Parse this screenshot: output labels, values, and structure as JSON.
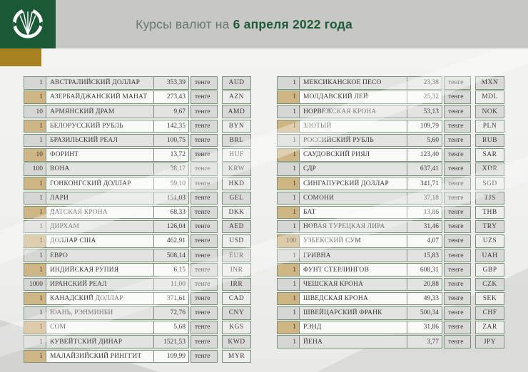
{
  "header": {
    "title_prefix": "Курсы валют на",
    "title_date": "6 апреля 2022 года",
    "logo": "national-bank-wheat-emblem"
  },
  "colors": {
    "brand_green": "#1a5836",
    "accent_gold": "#a6811f",
    "header_gray": "#c7c7c5",
    "table_border_green": "#7a937b",
    "quantity_tan": "#cfb584"
  },
  "tables": {
    "left": {
      "rows": [
        {
          "qty": "1",
          "name": "АВСТРАЛИЙСКИЙ ДОЛЛАР",
          "value": "353,39",
          "unit": "тенге",
          "code": "AUD"
        },
        {
          "qty": "1",
          "name": "АЗЕРБАЙДЖАНСКИЙ МАНАТ",
          "value": "273,43",
          "unit": "тенге",
          "code": "AZN"
        },
        {
          "qty": "10",
          "name": "АРМЯНСКИЙ ДРАМ",
          "value": "9,67",
          "unit": "тенге",
          "code": "AMD"
        },
        {
          "qty": "1",
          "name": "БЕЛОРУССКИЙ РУБЛЬ",
          "value": "142,35",
          "unit": "тенге",
          "code": "BYN"
        },
        {
          "qty": "1",
          "name": "БРАЗИЛЬСКИЙ РЕАЛ",
          "value": "100,75",
          "unit": "тенге",
          "code": "BRL"
        },
        {
          "qty": "10",
          "name": "ФОРИНТ",
          "value": "13,72",
          "unit": "тенге",
          "code": "HUF"
        },
        {
          "qty": "100",
          "name": "ВОНА",
          "value": "38,17",
          "unit": "тенге",
          "code": "KRW"
        },
        {
          "qty": "1",
          "name": "ГОНКОНГСКИЙ ДОЛЛАР",
          "value": "59,10",
          "unit": "тенге",
          "code": "HKD"
        },
        {
          "qty": "1",
          "name": "ЛАРИ",
          "value": "151,03",
          "unit": "тенге",
          "code": "GEL"
        },
        {
          "qty": "1",
          "name": "ДАТСКАЯ КРОНА",
          "value": "68,33",
          "unit": "тенге",
          "code": "DKK"
        },
        {
          "qty": "1",
          "name": "ДИРХАМ",
          "value": "126,04",
          "unit": "тенге",
          "code": "AED"
        },
        {
          "qty": "1",
          "name": "ДОЛЛАР США",
          "value": "462,91",
          "unit": "тенге",
          "code": "USD"
        },
        {
          "qty": "1",
          "name": "ЕВРО",
          "value": "508,14",
          "unit": "тенге",
          "code": "EUR"
        },
        {
          "qty": "1",
          "name": "ИНДИЙСКАЯ РУПИЯ",
          "value": "6,15",
          "unit": "тенге",
          "code": "INR"
        },
        {
          "qty": "1000",
          "name": "ИРАНСКИЙ РЕАЛ",
          "value": "11,00",
          "unit": "тенге",
          "code": "IRR"
        },
        {
          "qty": "1",
          "name": "КАНАДСКИЙ ДОЛЛАР",
          "value": "371,61",
          "unit": "тенге",
          "code": "CAD"
        },
        {
          "qty": "1",
          "name": "ЮАНЬ, РЭНМИНБИ",
          "value": "72,76",
          "unit": "тенге",
          "code": "CNY"
        },
        {
          "qty": "1",
          "name": "СОМ",
          "value": "5,68",
          "unit": "тенге",
          "code": "KGS"
        },
        {
          "qty": "1",
          "name": "КУВЕЙТСКИЙ ДИНАР",
          "value": "1521,53",
          "unit": "тенге",
          "code": "KWD"
        },
        {
          "qty": "1",
          "name": "МАЛАЙЗИЙСКИЙ РИНГГИТ",
          "value": "109,99",
          "unit": "тенге",
          "code": "MYR"
        }
      ]
    },
    "right": {
      "rows": [
        {
          "qty": "1",
          "name": "МЕКСИКАНСКОЕ ПЕСО",
          "value": "23,38",
          "unit": "тенге",
          "code": "MXN"
        },
        {
          "qty": "1",
          "name": "МОЛДАВСКИЙ ЛЕЙ",
          "value": "25,32",
          "unit": "тенге",
          "code": "MDL"
        },
        {
          "qty": "1",
          "name": "НОРВЕЖСКАЯ КРОНА",
          "value": "53,13",
          "unit": "тенге",
          "code": "NOK"
        },
        {
          "qty": "1",
          "name": "ЗЛОТЫЙ",
          "value": "109,79",
          "unit": "тенге",
          "code": "PLN"
        },
        {
          "qty": "1",
          "name": "РОССИЙСКИЙ РУБЛЬ",
          "value": "5,60",
          "unit": "тенге",
          "code": "RUB"
        },
        {
          "qty": "1",
          "name": "САУДОВСКИЙ РИЯЛ",
          "value": "123,40",
          "unit": "тенге",
          "code": "SAR"
        },
        {
          "qty": "1",
          "name": "СДР",
          "value": "637,41",
          "unit": "тенге",
          "code": "XDR"
        },
        {
          "qty": "1",
          "name": "СИНГАПУРСКИЙ ДОЛЛАР",
          "value": "341,71",
          "unit": "тенге",
          "code": "SGD"
        },
        {
          "qty": "1",
          "name": "СОМОНИ",
          "value": "37,18",
          "unit": "тенге",
          "code": "TJS"
        },
        {
          "qty": "1",
          "name": "БАТ",
          "value": "13,86",
          "unit": "тенге",
          "code": "THB"
        },
        {
          "qty": "1",
          "name": "НОВАЯ ТУРЕЦКАЯ ЛИРА",
          "value": "31,46",
          "unit": "тенге",
          "code": "TRY"
        },
        {
          "qty": "100",
          "name": "УЗБЕКСКИЙ СУМ",
          "value": "4,07",
          "unit": "тенге",
          "code": "UZS"
        },
        {
          "qty": "1",
          "name": "ГРИВНА",
          "value": "15,83",
          "unit": "тенге",
          "code": "UAH"
        },
        {
          "qty": "1",
          "name": "ФУНТ СТЕРЛИНГОВ",
          "value": "608,31",
          "unit": "тенге",
          "code": "GBP"
        },
        {
          "qty": "1",
          "name": "ЧЕШСКАЯ КРОНА",
          "value": "20,88",
          "unit": "тенге",
          "code": "CZK"
        },
        {
          "qty": "1",
          "name": "ШВЕДСКАЯ КРОНА",
          "value": "49,33",
          "unit": "тенге",
          "code": "SEK"
        },
        {
          "qty": "1",
          "name": "ШВЕЙЦАРСКИЙ ФРАНК",
          "value": "500,34",
          "unit": "тенге",
          "code": "CHF"
        },
        {
          "qty": "1",
          "name": "РЭНД",
          "value": "31,86",
          "unit": "тенге",
          "code": "ZAR"
        },
        {
          "qty": "1",
          "name": "ЙЕНА",
          "value": "3,77",
          "unit": "тенге",
          "code": "JPY"
        }
      ]
    }
  }
}
